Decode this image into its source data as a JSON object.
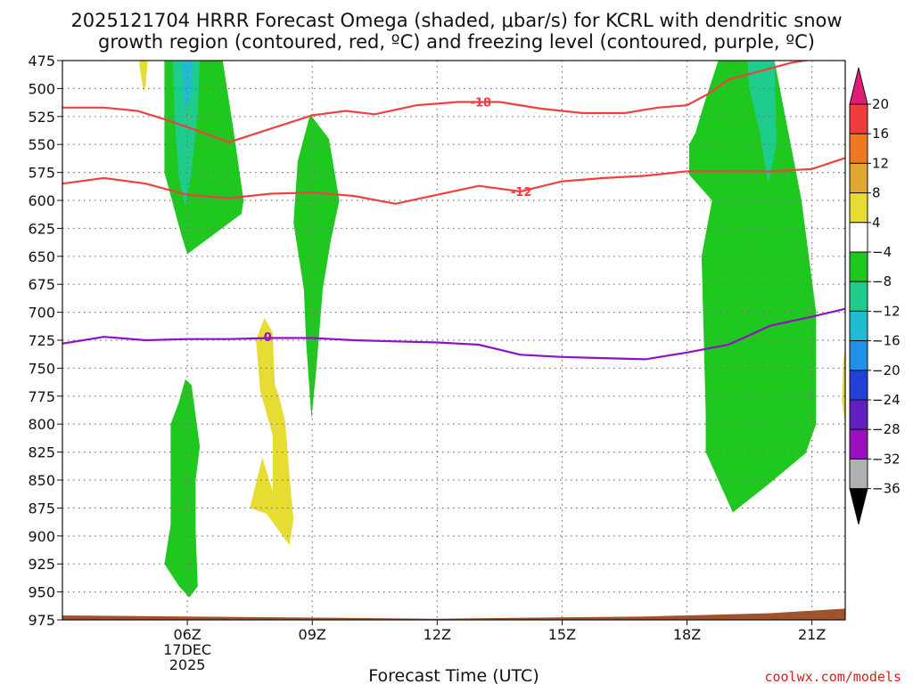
{
  "chart_data": {
    "type": "heatmap",
    "title_lines": [
      "2025121704 HRRR Forecast Omega (shaded, μbar/s) for KCRL with dendritic snow",
      "growth region (contoured, red, ºC) and freezing level (contoured, purple, ºC)"
    ],
    "xlabel": "Forecast Time (UTC)",
    "ylabel": "",
    "credit": "coolwx.com/models",
    "x_range_hours": [
      3.0,
      21.8
    ],
    "y_range_hpa": [
      975,
      475
    ],
    "y_ticks": [
      475,
      500,
      525,
      550,
      575,
      600,
      625,
      650,
      675,
      700,
      725,
      750,
      775,
      800,
      825,
      850,
      875,
      900,
      925,
      950,
      975
    ],
    "x_ticks": [
      {
        "hour": 6,
        "label": "06Z",
        "sub1": "17DEC",
        "sub2": "2025"
      },
      {
        "hour": 9,
        "label": "09Z",
        "sub1": "",
        "sub2": ""
      },
      {
        "hour": 12,
        "label": "12Z",
        "sub1": "",
        "sub2": ""
      },
      {
        "hour": 15,
        "label": "15Z",
        "sub1": "",
        "sub2": ""
      },
      {
        "hour": 18,
        "label": "18Z",
        "sub1": "",
        "sub2": ""
      },
      {
        "hour": 21,
        "label": "21Z",
        "sub1": "",
        "sub2": ""
      }
    ],
    "vertical_grid_hours": [
      6,
      9,
      12,
      15,
      18,
      21
    ],
    "colorbar": {
      "ticks": [
        20,
        16,
        12,
        8,
        4,
        -4,
        -8,
        -12,
        -16,
        -20,
        -24,
        -28,
        -32,
        -36
      ],
      "colors": [
        "#e01b78",
        "#f03c3c",
        "#f07820",
        "#e0a830",
        "#e6dc32",
        "#ffffff",
        "#1ec81e",
        "#1ecc8c",
        "#1ebcd0",
        "#2090e8",
        "#2040d8",
        "#6020c0",
        "#9a10c0",
        "#b0b0b0",
        "#000000"
      ]
    },
    "omega_regions": [
      {
        "name": "omega-region-a",
        "color": "#1ec81e",
        "points": [
          [
            5.45,
            475
          ],
          [
            6.85,
            475
          ],
          [
            7.1,
            535
          ],
          [
            7.35,
            600
          ],
          [
            7.3,
            612
          ],
          [
            6.0,
            648
          ],
          [
            5.85,
            630
          ],
          [
            5.45,
            575
          ]
        ]
      },
      {
        "name": "omega-region-b",
        "color": "#1ecc8c",
        "points": [
          [
            5.65,
            475
          ],
          [
            6.3,
            475
          ],
          [
            6.25,
            520
          ],
          [
            6.1,
            575
          ],
          [
            5.95,
            605
          ],
          [
            5.8,
            580
          ],
          [
            5.7,
            530
          ]
        ]
      },
      {
        "name": "omega-region-c",
        "color": "#1ebcd0",
        "points": [
          [
            5.85,
            475
          ],
          [
            6.15,
            475
          ],
          [
            6.1,
            505
          ],
          [
            5.95,
            520
          ],
          [
            5.9,
            500
          ]
        ]
      },
      {
        "name": "omega-region-d",
        "color": "#1ec81e",
        "points": [
          [
            8.95,
            523
          ],
          [
            9.4,
            545
          ],
          [
            9.65,
            600
          ],
          [
            9.45,
            635
          ],
          [
            9.25,
            680
          ],
          [
            9.1,
            750
          ],
          [
            8.98,
            795
          ],
          [
            8.85,
            725
          ],
          [
            8.8,
            680
          ],
          [
            8.55,
            620
          ],
          [
            8.65,
            565
          ]
        ]
      },
      {
        "name": "omega-region-e",
        "color": "#1ec81e",
        "points": [
          [
            5.95,
            760
          ],
          [
            6.1,
            765
          ],
          [
            6.3,
            820
          ],
          [
            6.2,
            850
          ],
          [
            6.2,
            895
          ],
          [
            6.25,
            945
          ],
          [
            6.05,
            955
          ],
          [
            5.8,
            945
          ],
          [
            5.45,
            925
          ],
          [
            5.6,
            890
          ],
          [
            5.6,
            800
          ],
          [
            5.8,
            780
          ]
        ]
      },
      {
        "name": "omega-region-f",
        "color": "#e6dc32",
        "points": [
          [
            7.85,
            705
          ],
          [
            8.05,
            718
          ],
          [
            8.1,
            765
          ],
          [
            8.2,
            775
          ],
          [
            8.35,
            798
          ],
          [
            8.45,
            845
          ],
          [
            8.55,
            885
          ],
          [
            8.45,
            908
          ],
          [
            7.9,
            880
          ],
          [
            7.5,
            875
          ],
          [
            7.8,
            830
          ],
          [
            8.05,
            860
          ],
          [
            8.05,
            810
          ],
          [
            7.75,
            770
          ],
          [
            7.65,
            725
          ]
        ]
      },
      {
        "name": "omega-region-g",
        "color": "#e6dc32",
        "points": [
          [
            4.85,
            475
          ],
          [
            5.05,
            475
          ],
          [
            5.0,
            497
          ],
          [
            4.95,
            503
          ],
          [
            4.85,
            480
          ]
        ]
      },
      {
        "name": "omega-region-h",
        "color": "#1ec81e",
        "points": [
          [
            18.75,
            475
          ],
          [
            20.1,
            475
          ],
          [
            20.75,
            600
          ],
          [
            21.1,
            700
          ],
          [
            21.1,
            800
          ],
          [
            20.85,
            826
          ],
          [
            19.95,
            854
          ],
          [
            19.1,
            879
          ],
          [
            18.45,
            825
          ],
          [
            18.45,
            790
          ],
          [
            18.35,
            650
          ],
          [
            18.6,
            600
          ],
          [
            18.05,
            577
          ],
          [
            18.05,
            550
          ],
          [
            18.2,
            540
          ],
          [
            18.4,
            515
          ]
        ]
      },
      {
        "name": "omega-region-i",
        "color": "#1ecc8c",
        "points": [
          [
            19.45,
            475
          ],
          [
            20.1,
            475
          ],
          [
            20.15,
            550
          ],
          [
            19.95,
            585
          ],
          [
            19.75,
            540
          ],
          [
            19.5,
            500
          ]
        ]
      },
      {
        "name": "omega-region-j",
        "color": "#e6dc32",
        "points": [
          [
            21.8,
            730
          ],
          [
            21.8,
            800
          ],
          [
            21.72,
            780
          ],
          [
            21.75,
            745
          ]
        ]
      }
    ],
    "terrain_color": "#a0522d",
    "terrain_top": [
      [
        3.0,
        971
      ],
      [
        6.0,
        972
      ],
      [
        12.0,
        974
      ],
      [
        17.0,
        972
      ],
      [
        20.0,
        969
      ],
      [
        21.8,
        965
      ]
    ],
    "isotherms": [
      {
        "name": "isotherm-minus18",
        "color": "#f04040",
        "label": "-18",
        "label_at": [
          13.05,
          512
        ],
        "points": [
          [
            3.0,
            517
          ],
          [
            4.0,
            517
          ],
          [
            4.8,
            520
          ],
          [
            5.5,
            528
          ],
          [
            6.2,
            537
          ],
          [
            7.0,
            548
          ],
          [
            8.0,
            536
          ],
          [
            9.0,
            524
          ],
          [
            9.8,
            520
          ],
          [
            10.5,
            523
          ],
          [
            11.5,
            515
          ],
          [
            12.5,
            512
          ],
          [
            13.5,
            512
          ],
          [
            14.5,
            518
          ],
          [
            15.5,
            522
          ],
          [
            16.5,
            522
          ],
          [
            17.3,
            517
          ],
          [
            18.0,
            515
          ],
          [
            18.5,
            505
          ],
          [
            19.0,
            492
          ],
          [
            19.5,
            487
          ],
          [
            20.0,
            482
          ],
          [
            20.5,
            477
          ],
          [
            21.0,
            474
          ],
          [
            21.8,
            471
          ]
        ]
      },
      {
        "name": "isotherm-minus12",
        "color": "#f04040",
        "label": "-12",
        "label_at": [
          14.02,
          592
        ],
        "points": [
          [
            3.0,
            585
          ],
          [
            4.0,
            580
          ],
          [
            5.0,
            585
          ],
          [
            6.0,
            595
          ],
          [
            7.0,
            598
          ],
          [
            8.0,
            594
          ],
          [
            9.0,
            593
          ],
          [
            10.0,
            596
          ],
          [
            11.0,
            603
          ],
          [
            12.0,
            595
          ],
          [
            13.0,
            587
          ],
          [
            14.0,
            592
          ],
          [
            15.0,
            583
          ],
          [
            16.0,
            580
          ],
          [
            17.0,
            578
          ],
          [
            18.0,
            574
          ],
          [
            19.0,
            574
          ],
          [
            20.0,
            574
          ],
          [
            21.0,
            572
          ],
          [
            21.8,
            562
          ]
        ]
      },
      {
        "name": "freezing-level-0",
        "color": "#9010c8",
        "label": "0",
        "label_at": [
          7.93,
          722
        ],
        "points": [
          [
            3.0,
            728
          ],
          [
            4.0,
            722
          ],
          [
            5.0,
            725
          ],
          [
            6.0,
            724
          ],
          [
            7.0,
            724
          ],
          [
            8.0,
            723
          ],
          [
            9.0,
            723
          ],
          [
            10.0,
            725
          ],
          [
            11.0,
            726
          ],
          [
            12.0,
            727
          ],
          [
            13.0,
            729
          ],
          [
            14.0,
            738
          ],
          [
            15.0,
            740
          ],
          [
            16.0,
            741
          ],
          [
            17.0,
            742
          ],
          [
            18.0,
            736
          ],
          [
            19.0,
            729
          ],
          [
            20.0,
            712
          ],
          [
            21.0,
            704
          ],
          [
            21.8,
            697
          ]
        ]
      }
    ]
  }
}
